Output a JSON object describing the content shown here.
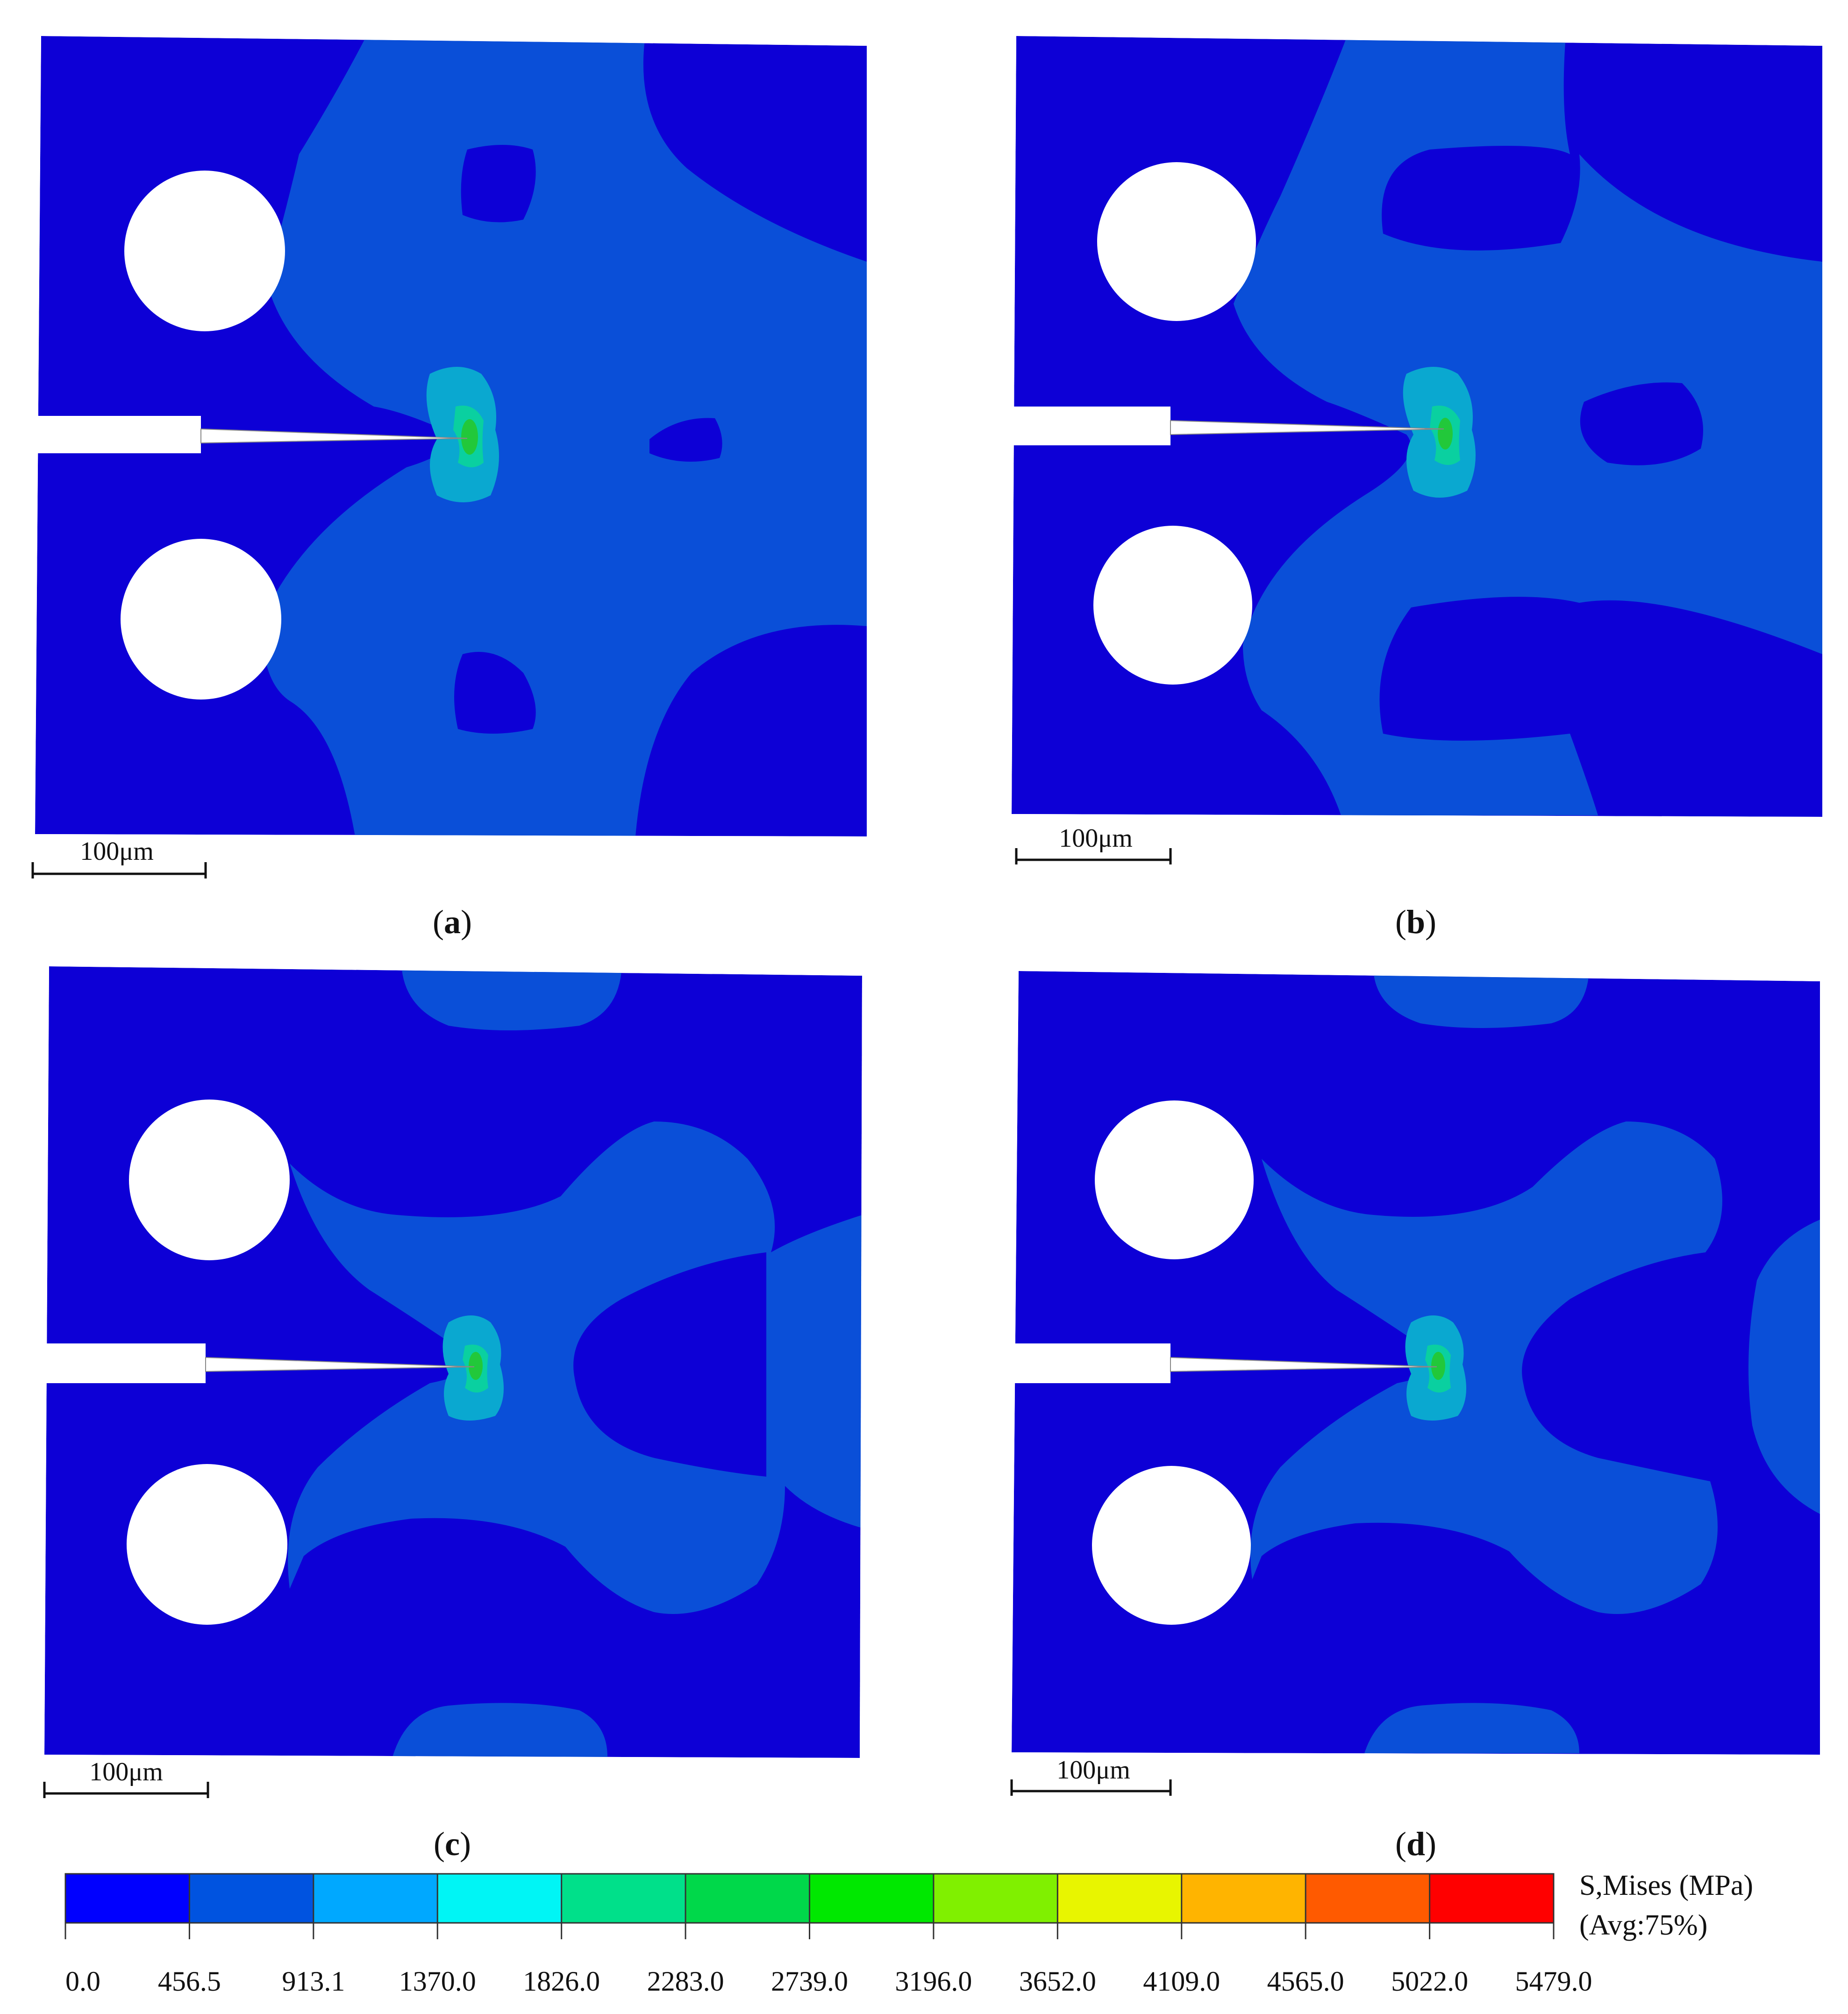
{
  "figure": {
    "panels": [
      {
        "id": "a",
        "caption_letter": "a",
        "scalebar_label": "100μm"
      },
      {
        "id": "b",
        "caption_letter": "b",
        "scalebar_label": "100μm"
      },
      {
        "id": "c",
        "caption_letter": "c",
        "scalebar_label": "100μm"
      },
      {
        "id": "d",
        "caption_letter": "d",
        "scalebar_label": "100μm"
      }
    ],
    "legend": {
      "title_line1": "S,Mises (MPa)",
      "title_line2": "(Avg:75%)",
      "ticks": [
        "0.0",
        "456.5",
        "913.1",
        "1370.0",
        "1826.0",
        "2283.0",
        "2739.0",
        "3196.0",
        "3652.0",
        "4109.0",
        "4565.0",
        "5022.0",
        "5479.0"
      ],
      "colors": [
        "#0000ff",
        "#0053e0",
        "#00a8ff",
        "#00f5f5",
        "#00e08a",
        "#00d84a",
        "#00e800",
        "#80f000",
        "#e8f500",
        "#ffb400",
        "#ff5a00",
        "#ff0000"
      ]
    },
    "field_colors": {
      "low": "#0d00d6",
      "mid": "#0a4fd8",
      "hot1": "#0aa8d0",
      "hot2": "#0ad0a0",
      "hot3": "#22c83a"
    }
  }
}
